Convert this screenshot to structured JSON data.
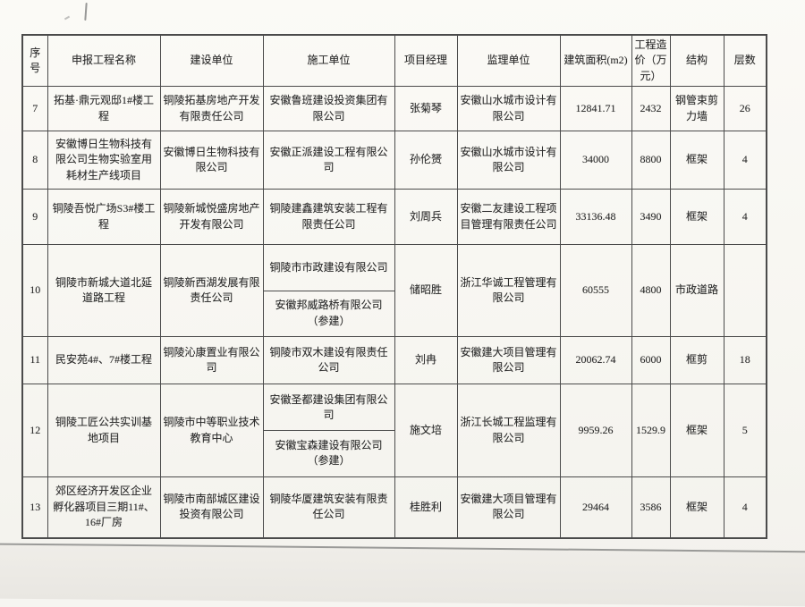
{
  "colors": {
    "paper": "#fbfaf6",
    "ink": "#2b2b2b",
    "grid_line": "#4b4b4b",
    "scanner_edge": "#9a9a98"
  },
  "table": {
    "headers": [
      "序号",
      "申报工程名称",
      "建设单位",
      "施工单位",
      "项目经理",
      "监理单位",
      "建筑面积(m2)",
      "工程造价（万元）",
      "结构",
      "层数"
    ],
    "rows": [
      {
        "no": "7",
        "project": "拓基·鼎元观邸1#楼工程",
        "builder": "铜陵拓基房地产开发有限责任公司",
        "contractors": [
          "安徽鲁班建设投资集团有限公司"
        ],
        "manager": "张菊琴",
        "supervisor": "安徽山水城市设计有限公司",
        "area": "12841.71",
        "cost": "2432",
        "structure": "钢管束剪力墙",
        "floors": "26"
      },
      {
        "no": "8",
        "project": "安徽博日生物科技有限公司生物实验室用耗材生产线项目",
        "builder": "安徽博日生物科技有限公司",
        "contractors": [
          "安徽正派建设工程有限公司"
        ],
        "manager": "孙伦赟",
        "supervisor": "安徽山水城市设计有限公司",
        "area": "34000",
        "cost": "8800",
        "structure": "框架",
        "floors": "4"
      },
      {
        "no": "9",
        "project": "铜陵吾悦广场S3#楼工程",
        "builder": "铜陵新城悦盛房地产开发有限公司",
        "contractors": [
          "铜陵建鑫建筑安装工程有限责任公司"
        ],
        "manager": "刘周兵",
        "supervisor": "安徽二友建设工程项目管理有限责任公司",
        "area": "33136.48",
        "cost": "3490",
        "structure": "框架",
        "floors": "4"
      },
      {
        "no": "10",
        "project": "铜陵市新城大道北延道路工程",
        "builder": "铜陵新西湖发展有限责任公司",
        "contractors": [
          "铜陵市市政建设有限公司",
          "安徽邦威路桥有限公司（参建）"
        ],
        "manager": "储昭胜",
        "supervisor": "浙江华诚工程管理有限公司",
        "area": "60555",
        "cost": "4800",
        "structure": "市政道路",
        "floors": ""
      },
      {
        "no": "11",
        "project": "民安苑4#、7#楼工程",
        "builder": "铜陵沁康置业有限公司",
        "contractors": [
          "铜陵市双木建设有限责任公司"
        ],
        "manager": "刘冉",
        "supervisor": "安徽建大项目管理有限公司",
        "area": "20062.74",
        "cost": "6000",
        "structure": "框剪",
        "floors": "18"
      },
      {
        "no": "12",
        "project": "铜陵工匠公共实训基地项目",
        "builder": "铜陵市中等职业技术教育中心",
        "contractors": [
          "安徽圣都建设集团有限公司",
          "安徽宝森建设有限公司（参建）"
        ],
        "manager": "施文培",
        "supervisor": "浙江长城工程监理有限公司",
        "area": "9959.26",
        "cost": "1529.9",
        "structure": "框架",
        "floors": "5"
      },
      {
        "no": "13",
        "project": "郊区经济开发区企业孵化器项目三期11#、16#厂房",
        "builder": "铜陵市南部城区建设投资有限公司",
        "contractors": [
          "铜陵华厦建筑安装有限责任公司"
        ],
        "manager": "桂胜利",
        "supervisor": "安徽建大项目管理有限公司",
        "area": "29464",
        "cost": "3586",
        "structure": "框架",
        "floors": "4"
      }
    ]
  }
}
